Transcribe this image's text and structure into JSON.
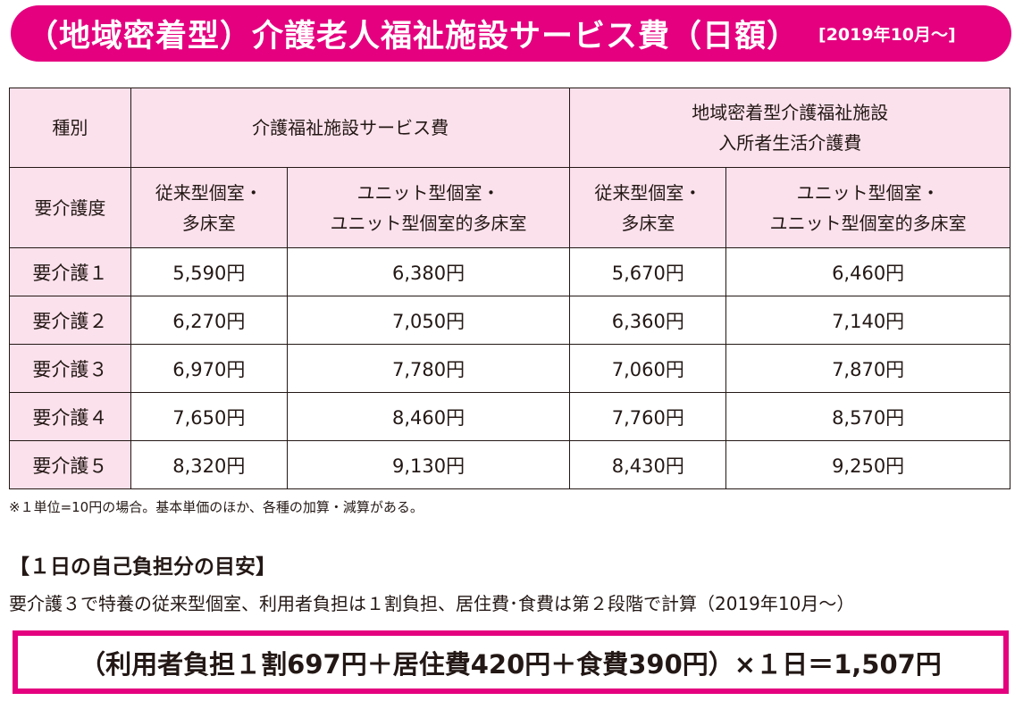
{
  "header": {
    "title": "（地域密着型）介護老人福祉施設サービス費（日額）",
    "date": "[2019年10月～]"
  },
  "table": {
    "head1": {
      "type_label": "種別",
      "group1": "介護福祉施設サービス費",
      "group2_line1": "地域密着型介護福祉施設",
      "group2_line2": "入所者生活介護費"
    },
    "head2": {
      "grade_label": "要介護度",
      "g1_conv_line1": "従来型個室・",
      "g1_conv_line2": "多床室",
      "g1_unit_line1": "ユニット型個室・",
      "g1_unit_line2": "ユニット型個室的多床室",
      "g2_conv_line1": "従来型個室・",
      "g2_conv_line2": "多床室",
      "g2_unit_line1": "ユニット型個室・",
      "g2_unit_line2": "ユニット型個室的多床室"
    },
    "rows": [
      {
        "grade": "要介護１",
        "v1": "5,590円",
        "v2": "6,380円",
        "v3": "5,670円",
        "v4": "6,460円"
      },
      {
        "grade": "要介護２",
        "v1": "6,270円",
        "v2": "7,050円",
        "v3": "6,360円",
        "v4": "7,140円"
      },
      {
        "grade": "要介護３",
        "v1": "6,970円",
        "v2": "7,780円",
        "v3": "7,060円",
        "v4": "7,870円"
      },
      {
        "grade": "要介護４",
        "v1": "7,650円",
        "v2": "8,460円",
        "v3": "7,760円",
        "v4": "8,570円"
      },
      {
        "grade": "要介護５",
        "v1": "8,320円",
        "v2": "9,130円",
        "v3": "8,430円",
        "v4": "9,250円"
      }
    ]
  },
  "note": "※１単位=10円の場合。基本単価のほか、各種の加算・減算がある。",
  "section": {
    "title": "【１日の自己負担分の目安】",
    "description": "要介護３で特養の従来型個室、利用者負担は１割負担、居住費･食費は第２段階で計算（2019年10月～）",
    "formula": "（利用者負担１割697円＋居住費420円＋食費390円）×１日＝1,507円"
  },
  "colors": {
    "accent": "#e4007f",
    "header_bg": "#fbe1ec",
    "text": "#231815"
  }
}
